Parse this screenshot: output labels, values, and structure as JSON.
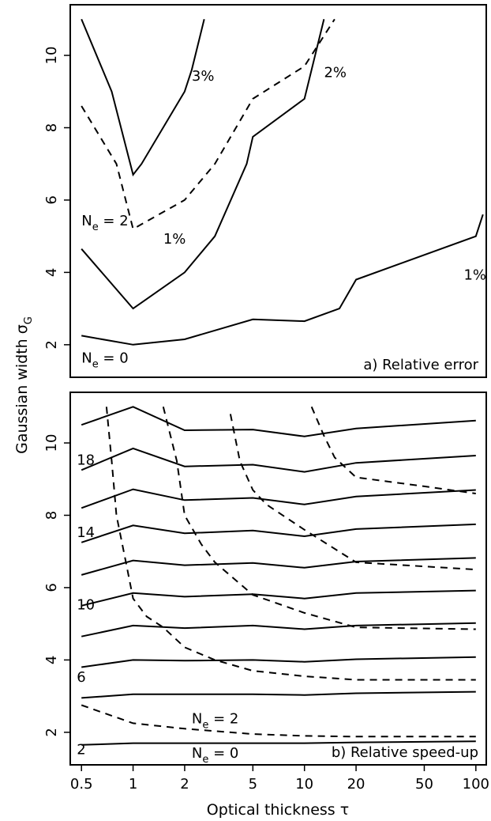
{
  "chart_data": [
    {
      "type": "line",
      "title": "a) Relative error",
      "xlabel": "Optical thickness τ",
      "ylabel": "Gaussian width σG",
      "xscale": "log",
      "xlim": [
        0.43,
        115
      ],
      "ylim": [
        1.1,
        11.4
      ],
      "xticks": [
        0.5,
        1,
        2,
        5,
        10,
        20,
        50,
        100
      ],
      "yticks": [
        2,
        4,
        6,
        8,
        10
      ],
      "annotations": {
        "ne0": {
          "text": "N",
          "sub": "e",
          "rest": " = 0",
          "x": 0.5,
          "y": 1.5
        },
        "ne2": {
          "text": "N",
          "sub": "e",
          "rest": " = 2",
          "x": 0.5,
          "y": 5.3
        },
        "c1a": {
          "text": "1%",
          "x": 1.5,
          "y": 4.8
        },
        "c1b": {
          "text": "1%",
          "x": 85,
          "y": 3.8
        },
        "c2": {
          "text": "2%",
          "x": 13,
          "y": 9.4
        },
        "c3": {
          "text": "3%",
          "x": 2.2,
          "y": 9.3
        }
      },
      "series": [
        {
          "style": "solid",
          "x": [
            0.5,
            1,
            2,
            5,
            10,
            16,
            20,
            100,
            110
          ],
          "y": [
            2.25,
            2.0,
            2.15,
            2.7,
            2.65,
            3.0,
            3.8,
            5.0,
            5.6
          ]
        },
        {
          "style": "solid",
          "x": [
            0.5,
            1,
            2,
            3,
            4.6,
            5,
            10,
            13
          ],
          "y": [
            4.65,
            3.0,
            4.0,
            5.0,
            7.0,
            7.75,
            8.8,
            11.0
          ]
        },
        {
          "style": "dashed",
          "x": [
            0.5,
            0.8,
            1,
            2,
            3,
            5,
            10,
            15
          ],
          "y": [
            8.6,
            7.0,
            5.2,
            6.0,
            7.0,
            8.8,
            9.7,
            11.0
          ]
        },
        {
          "style": "solid",
          "x": [
            0.5,
            0.75,
            1,
            1.12,
            2,
            2.2,
            2.6
          ],
          "y": [
            11.0,
            9.0,
            6.7,
            7.0,
            9.0,
            9.6,
            11.0
          ]
        }
      ]
    },
    {
      "type": "line",
      "title": "b) Relative speed-up",
      "xlabel": "Optical thickness τ",
      "ylabel": "Gaussian width σG",
      "xscale": "log",
      "xlim": [
        0.43,
        115
      ],
      "ylim": [
        1.1,
        11.4
      ],
      "xticks": [
        0.5,
        1,
        2,
        5,
        10,
        20,
        50,
        100
      ],
      "yticks": [
        2,
        4,
        6,
        8,
        10
      ],
      "labels": [
        {
          "text": "2",
          "x": 0.5,
          "y": 1.4
        },
        {
          "text": "6",
          "x": 0.5,
          "y": 3.4
        },
        {
          "text": "10",
          "x": 0.5,
          "y": 5.4
        },
        {
          "text": "14",
          "x": 0.5,
          "y": 7.4
        },
        {
          "text": "18",
          "x": 0.5,
          "y": 9.4
        }
      ],
      "annotations": {
        "ne0": {
          "text": "N",
          "sub": "e",
          "rest": " = 0",
          "x": 2.2,
          "y": 1.3
        },
        "ne2": {
          "text": "N",
          "sub": "e",
          "rest": " = 2",
          "x": 2.2,
          "y": 2.25
        }
      },
      "contours_x": [
        0.5,
        1,
        2,
        5,
        10,
        20,
        100
      ],
      "contours": [
        [
          1.65,
          1.7,
          1.7,
          1.7,
          1.7,
          1.72,
          1.75
        ],
        [
          2.95,
          3.05,
          3.05,
          3.05,
          3.03,
          3.08,
          3.12
        ],
        [
          3.8,
          4.0,
          3.98,
          4.0,
          3.95,
          4.02,
          4.08
        ],
        [
          4.65,
          4.95,
          4.88,
          4.95,
          4.85,
          4.95,
          5.02
        ],
        [
          5.5,
          5.85,
          5.75,
          5.82,
          5.7,
          5.85,
          5.92
        ],
        [
          6.35,
          6.75,
          6.62,
          6.68,
          6.55,
          6.72,
          6.82
        ],
        [
          7.25,
          7.72,
          7.5,
          7.58,
          7.42,
          7.62,
          7.75
        ],
        [
          8.2,
          8.72,
          8.42,
          8.48,
          8.3,
          8.52,
          8.7
        ],
        [
          9.25,
          9.85,
          9.35,
          9.4,
          9.2,
          9.45,
          9.65
        ],
        [
          10.5,
          11.0,
          10.35,
          10.37,
          10.18,
          10.4,
          10.62
        ]
      ],
      "dashed_series": [
        {
          "x": [
            0.5,
            1,
            2,
            5,
            10,
            20,
            100
          ],
          "y": [
            2.75,
            2.25,
            2.1,
            1.95,
            1.9,
            1.88,
            1.88
          ]
        },
        {
          "x": [
            0.7,
            0.75,
            0.8,
            0.9,
            1,
            1.2,
            1.5,
            2,
            3,
            5,
            10,
            20,
            100
          ],
          "y": [
            11.0,
            9.5,
            8.0,
            6.8,
            5.7,
            5.2,
            4.9,
            4.35,
            4.0,
            3.7,
            3.55,
            3.45,
            3.45
          ]
        },
        {
          "x": [
            1.5,
            1.8,
            2,
            2.5,
            3,
            5,
            10,
            20,
            100
          ],
          "y": [
            11.0,
            9.5,
            8.0,
            7.2,
            6.7,
            5.8,
            5.3,
            4.9,
            4.85
          ]
        },
        {
          "x": [
            3.7,
            4.2,
            5,
            6,
            10,
            20,
            100
          ],
          "y": [
            10.8,
            9.5,
            8.7,
            8.3,
            7.6,
            6.7,
            6.5
          ]
        },
        {
          "x": [
            11,
            13,
            15,
            20,
            50,
            100
          ],
          "y": [
            11.0,
            10.2,
            9.6,
            9.05,
            8.8,
            8.6
          ]
        }
      ]
    }
  ]
}
